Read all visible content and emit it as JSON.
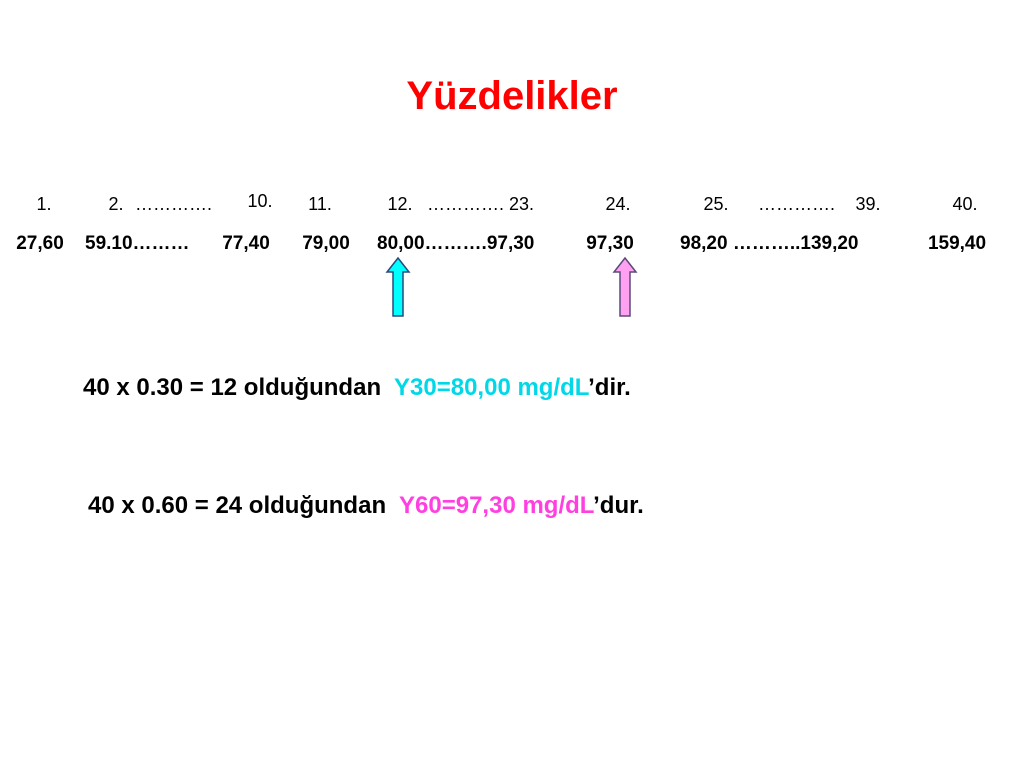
{
  "title": "Yüzdelikler",
  "ranks": [
    "1.",
    "2.",
    "………….",
    "10.",
    "11.",
    "12.",
    "…………. 23.",
    "24.",
    "25.",
    "………….",
    "39.",
    "40."
  ],
  "values": [
    "27,60",
    "59.10………",
    "77,40",
    "79,00",
    "80,00……….97,30",
    "97,30",
    "98,20 ………..139,20",
    "159,40"
  ],
  "lines": [
    {
      "prefix": "40 x 0.30 = 12 olduğundan",
      "highlight": "Y30=80,00 mg/dL",
      "suffix": "’dir."
    },
    {
      "prefix": "40 x 0.60 = 24 olduğundan",
      "highlight": "Y60=97,30 mg/dL",
      "suffix": "’dur."
    }
  ]
}
